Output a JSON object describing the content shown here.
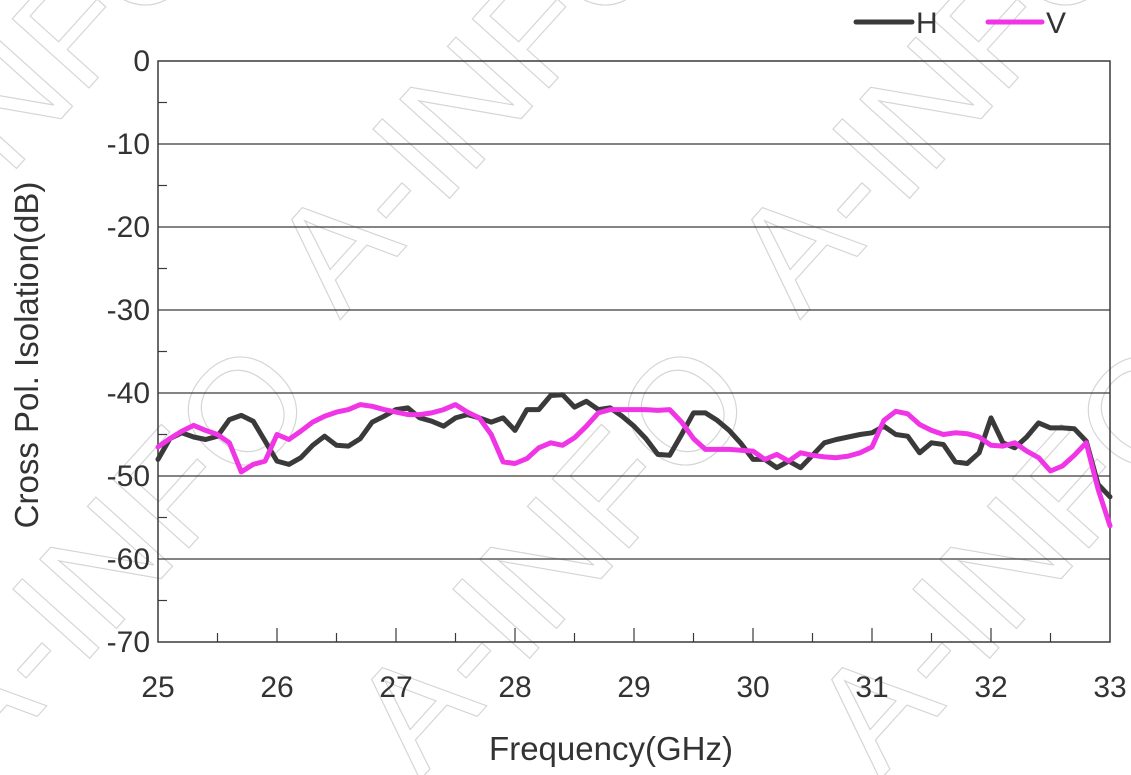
{
  "watermark": "A-INFO",
  "chart_data": {
    "type": "line",
    "xlabel": "Frequency(GHz)",
    "ylabel": "Cross Pol. Isolation(dB)",
    "xlim": [
      25,
      33
    ],
    "ylim": [
      -70,
      0
    ],
    "xticks": [
      "25",
      "26",
      "27",
      "28",
      "29",
      "30",
      "31",
      "32",
      "33"
    ],
    "yticks": [
      "0",
      "-10",
      "-20",
      "-30",
      "-40",
      "-50",
      "-60",
      "-70"
    ],
    "grid": "horizontal major",
    "legend_position": "top-right",
    "series": [
      {
        "name": "H",
        "color": "#3a3a3a",
        "x": [
          25.0,
          25.1,
          25.2,
          25.3,
          25.4,
          25.5,
          25.6,
          25.7,
          25.8,
          25.9,
          26.0,
          26.1,
          26.2,
          26.3,
          26.4,
          26.5,
          26.6,
          26.7,
          26.8,
          26.9,
          27.0,
          27.1,
          27.2,
          27.3,
          27.4,
          27.5,
          27.6,
          27.7,
          27.8,
          27.9,
          28.0,
          28.1,
          28.2,
          28.3,
          28.4,
          28.5,
          28.6,
          28.7,
          28.8,
          28.9,
          29.0,
          29.1,
          29.2,
          29.3,
          29.4,
          29.5,
          29.6,
          29.7,
          29.8,
          29.9,
          30.0,
          30.1,
          30.2,
          30.3,
          30.4,
          30.5,
          30.6,
          30.7,
          30.8,
          30.9,
          31.0,
          31.1,
          31.2,
          31.3,
          31.4,
          31.5,
          31.6,
          31.7,
          31.8,
          31.9,
          32.0,
          32.1,
          32.2,
          32.3,
          32.4,
          32.5,
          32.6,
          32.7,
          32.8,
          32.9,
          33.0
        ],
        "y": [
          -48,
          -45.5,
          -44.8,
          -45.3,
          -45.6,
          -45.2,
          -43.2,
          -42.7,
          -43.4,
          -45.8,
          -48.2,
          -48.6,
          -47.8,
          -46.3,
          -45.2,
          -46.3,
          -46.4,
          -45.5,
          -43.5,
          -42.8,
          -42.0,
          -41.8,
          -43.0,
          -43.4,
          -44.0,
          -43.0,
          -42.6,
          -43.0,
          -43.5,
          -43.0,
          -44.5,
          -42.0,
          -42.0,
          -40.3,
          -40.2,
          -41.7,
          -41.0,
          -42.0,
          -41.8,
          -42.8,
          -44.0,
          -45.5,
          -47.4,
          -47.5,
          -45.0,
          -42.4,
          -42.4,
          -43.3,
          -44.5,
          -46.1,
          -48.0,
          -48.0,
          -49.0,
          -48.2,
          -49.0,
          -47.5,
          -46.0,
          -45.6,
          -45.3,
          -45.0,
          -44.8,
          -44.0,
          -45.0,
          -45.2,
          -47.2,
          -46.0,
          -46.2,
          -48.3,
          -48.5,
          -47.2,
          -43.0,
          -46.0,
          -46.6,
          -45.3,
          -43.6,
          -44.2,
          -44.2,
          -44.3,
          -45.8,
          -51.0,
          -52.5
        ]
      },
      {
        "name": "V",
        "color": "#ef35e6",
        "x": [
          25.0,
          25.1,
          25.2,
          25.3,
          25.4,
          25.5,
          25.6,
          25.7,
          25.8,
          25.9,
          26.0,
          26.1,
          26.2,
          26.3,
          26.4,
          26.5,
          26.6,
          26.7,
          26.8,
          26.9,
          27.0,
          27.1,
          27.2,
          27.3,
          27.4,
          27.5,
          27.6,
          27.7,
          27.8,
          27.9,
          28.0,
          28.1,
          28.2,
          28.3,
          28.4,
          28.5,
          28.6,
          28.7,
          28.8,
          28.9,
          29.0,
          29.1,
          29.2,
          29.3,
          29.4,
          29.5,
          29.6,
          29.7,
          29.8,
          29.9,
          30.0,
          30.1,
          30.2,
          30.3,
          30.4,
          30.5,
          30.6,
          30.7,
          30.8,
          30.9,
          31.0,
          31.1,
          31.2,
          31.3,
          31.4,
          31.5,
          31.6,
          31.7,
          31.8,
          31.9,
          32.0,
          32.1,
          32.2,
          32.3,
          32.4,
          32.5,
          32.6,
          32.7,
          32.8,
          32.9,
          33.0
        ],
        "y": [
          -46.5,
          -45.5,
          -44.6,
          -43.9,
          -44.5,
          -45.0,
          -46.0,
          -49.5,
          -48.6,
          -48.2,
          -45.0,
          -45.6,
          -44.6,
          -43.5,
          -42.8,
          -42.3,
          -42.0,
          -41.4,
          -41.6,
          -42.0,
          -42.3,
          -42.6,
          -42.6,
          -42.4,
          -42.0,
          -41.4,
          -42.3,
          -43.0,
          -45.0,
          -48.3,
          -48.5,
          -47.9,
          -46.6,
          -46.0,
          -46.3,
          -45.4,
          -44.0,
          -42.4,
          -42.0,
          -42.0,
          -42.0,
          -42.0,
          -42.1,
          -42.0,
          -43.5,
          -45.5,
          -46.8,
          -46.8,
          -46.8,
          -46.9,
          -47.0,
          -48.0,
          -47.4,
          -48.2,
          -47.2,
          -47.5,
          -47.7,
          -47.8,
          -47.6,
          -47.2,
          -46.5,
          -43.3,
          -42.2,
          -42.5,
          -43.8,
          -44.5,
          -45.0,
          -44.8,
          -44.9,
          -45.3,
          -46.3,
          -46.4,
          -46.0,
          -47.0,
          -47.8,
          -49.4,
          -48.8,
          -47.5,
          -46.0,
          -51.6,
          -56.0
        ]
      }
    ]
  }
}
